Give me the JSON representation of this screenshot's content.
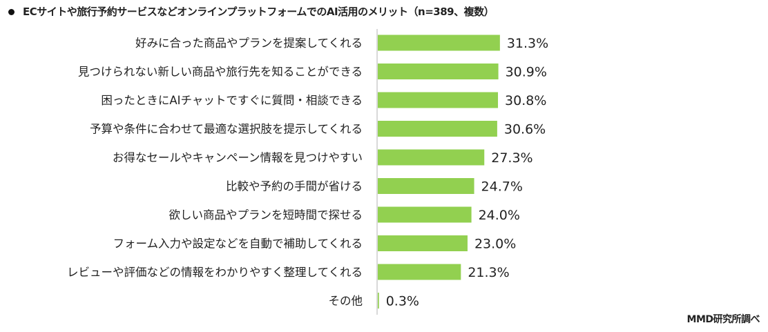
{
  "chart_data": {
    "type": "bar",
    "orientation": "horizontal",
    "title": "ECサイトや旅行予約サービスなどオンラインプラットフォームでのAI活用のメリット（n=389、複数）",
    "categories": [
      "好みに合った商品やプランを提案してくれる",
      "見つけられない新しい商品や旅行先を知ることができる",
      "困ったときにAIチャットですぐに質問・相談できる",
      "予算や条件に合わせて最適な選択肢を提示してくれる",
      "お得なセールやキャンペーン情報を見つけやすい",
      "比較や予約の手間が省ける",
      "欲しい商品やプランを短時間で探せる",
      "フォーム入力や設定などを自動で補助してくれる",
      "レビューや評価などの情報をわかりやすく整理してくれる",
      "その他"
    ],
    "values": [
      31.3,
      30.9,
      30.8,
      30.6,
      27.3,
      24.7,
      24.0,
      23.0,
      21.3,
      0.3
    ],
    "value_labels": [
      "31.3%",
      "30.9%",
      "30.8%",
      "30.6%",
      "27.3%",
      "24.7%",
      "24.0%",
      "23.0%",
      "21.3%",
      "0.3%"
    ],
    "unit": "%",
    "bar_color": "#92d050",
    "grid": false,
    "legend": "none"
  },
  "source": "MMD研究所調べ"
}
